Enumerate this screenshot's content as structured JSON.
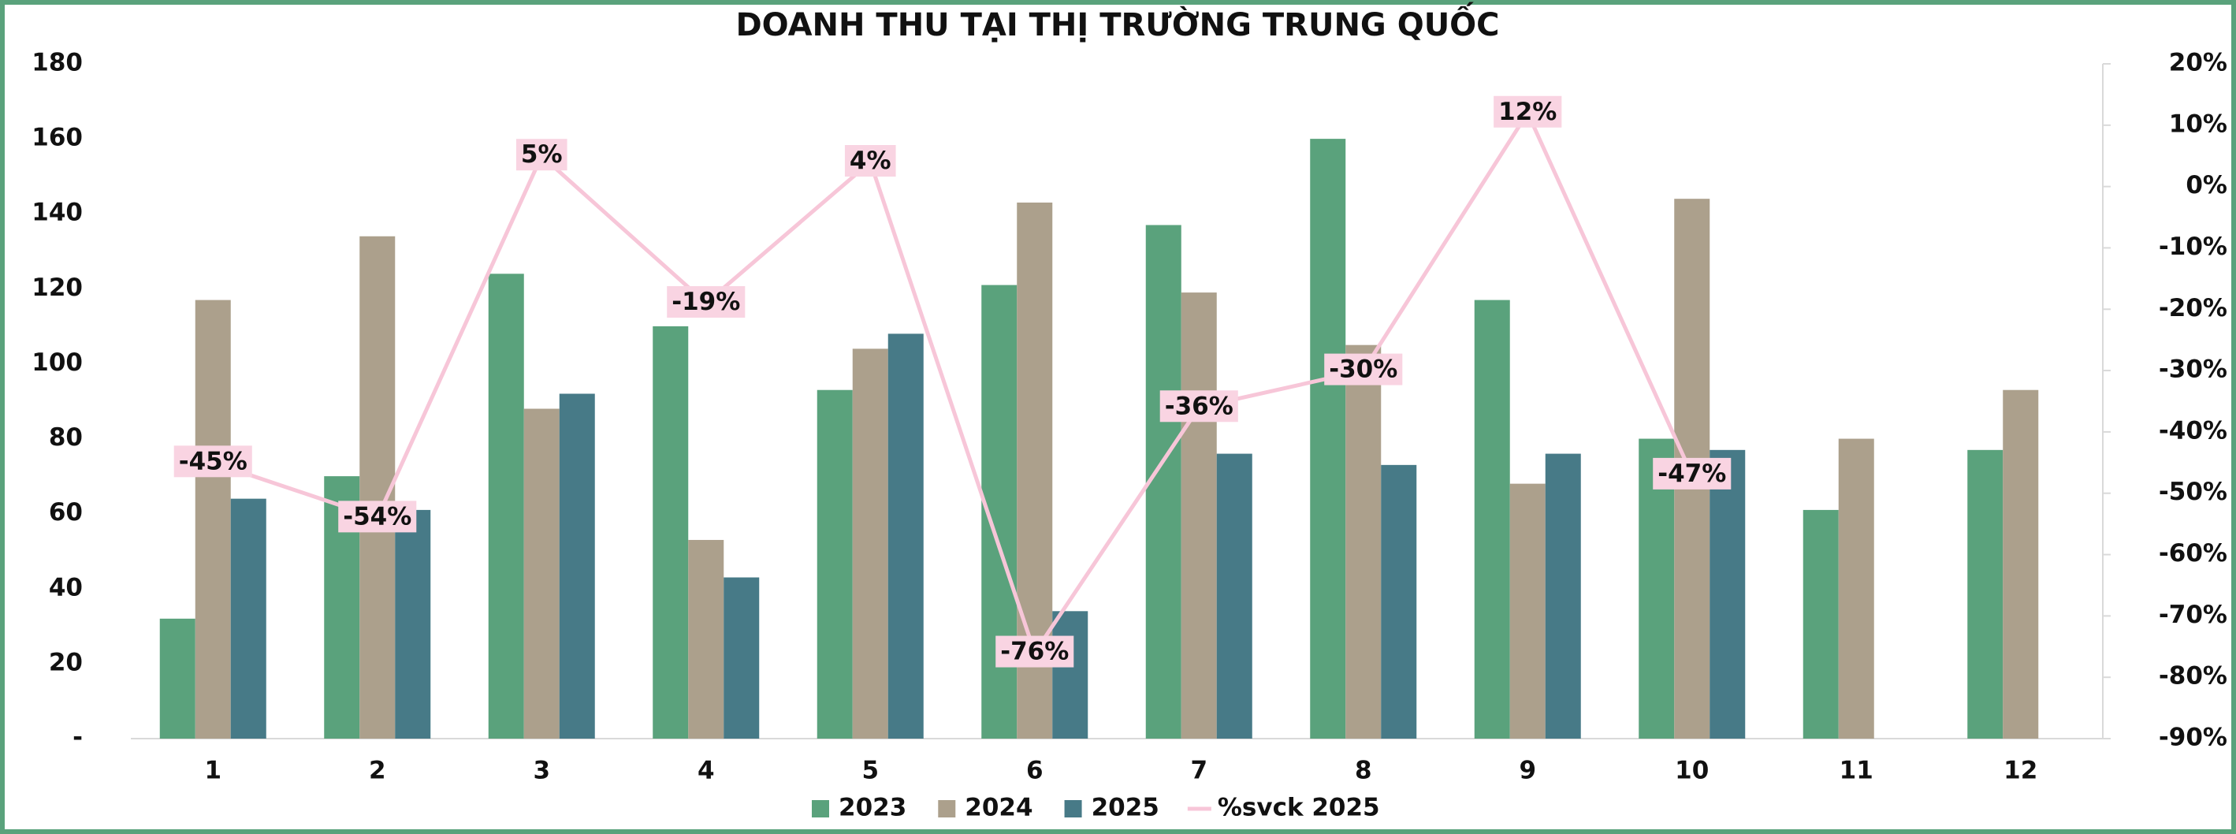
{
  "chart_data": {
    "type": "bar",
    "title": "DOANH THU TẠI THỊ TRƯỜNG TRUNG QUỐC",
    "categories": [
      "1",
      "2",
      "3",
      "4",
      "5",
      "6",
      "7",
      "8",
      "9",
      "10",
      "11",
      "12"
    ],
    "series": [
      {
        "name": "2023",
        "color": "#5aa27c",
        "values": [
          32,
          70,
          124,
          110,
          93,
          121,
          137,
          160,
          117,
          80,
          61,
          77
        ]
      },
      {
        "name": "2024",
        "color": "#aca08c",
        "values": [
          117,
          134,
          88,
          53,
          104,
          143,
          119,
          105,
          68,
          144,
          80,
          93
        ]
      },
      {
        "name": "2025",
        "color": "#477a87",
        "values": [
          64,
          61,
          92,
          43,
          108,
          34,
          76,
          73,
          76,
          77,
          null,
          null
        ]
      },
      {
        "name": "%svck 2025",
        "type": "line",
        "axis": "y2",
        "color": "#f7c6d8",
        "values": [
          -45,
          -54,
          5,
          -19,
          4,
          -76,
          -36,
          -30,
          12,
          -47,
          null,
          null
        ],
        "value_labels": [
          "-45%",
          "-54%",
          "5%",
          "-19%",
          "4%",
          "-76%",
          "-36%",
          "-30%",
          "12%",
          "-47%",
          null,
          null
        ]
      }
    ],
    "ylim": [
      0,
      180
    ],
    "yticks": [
      {
        "value": 0,
        "label": "-"
      },
      20,
      40,
      60,
      80,
      100,
      120,
      140,
      160,
      180
    ],
    "y2lim": [
      -90,
      20
    ],
    "y2ticks": [
      {
        "value": -90,
        "label": "-90%"
      },
      {
        "value": -80,
        "label": "-80%"
      },
      {
        "value": -70,
        "label": "-70%"
      },
      {
        "value": -60,
        "label": "-60%"
      },
      {
        "value": -50,
        "label": "-50%"
      },
      {
        "value": -40,
        "label": "-40%"
      },
      {
        "value": -30,
        "label": "-30%"
      },
      {
        "value": -20,
        "label": "-20%"
      },
      {
        "value": -10,
        "label": "-10%"
      },
      {
        "value": 0,
        "label": "0%"
      },
      {
        "value": 10,
        "label": "10%"
      },
      {
        "value": 20,
        "label": "20%"
      }
    ],
    "legend": "bottom"
  }
}
